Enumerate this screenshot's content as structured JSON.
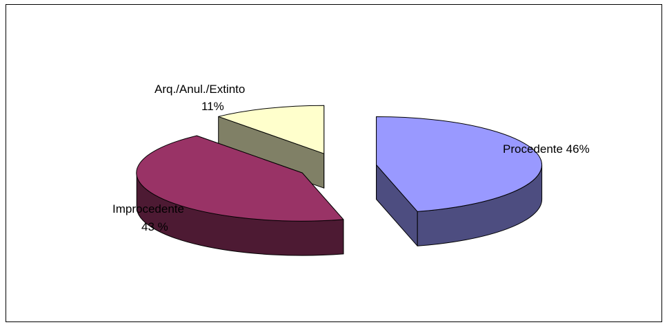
{
  "chart_data": {
    "type": "pie",
    "style": "3d-exploded",
    "title": "",
    "slices": [
      {
        "label": "Procedente",
        "value": 46,
        "display": "Procedente 46%",
        "top_color": "#9999ff",
        "side_color": "#4d4d80"
      },
      {
        "label": "Improcedente",
        "value": 43,
        "display_line1": "Improcedente",
        "display_line2": "43 %",
        "top_color": "#993366",
        "side_color": "#4d1a33"
      },
      {
        "label": "Arq./Anul./Extinto",
        "value": 11,
        "display_line1": "Arq./Anul./Extinto",
        "display_line2": "11%",
        "top_color": "#ffffcc",
        "side_color": "#808066"
      }
    ],
    "legend": "none",
    "grid": false
  }
}
